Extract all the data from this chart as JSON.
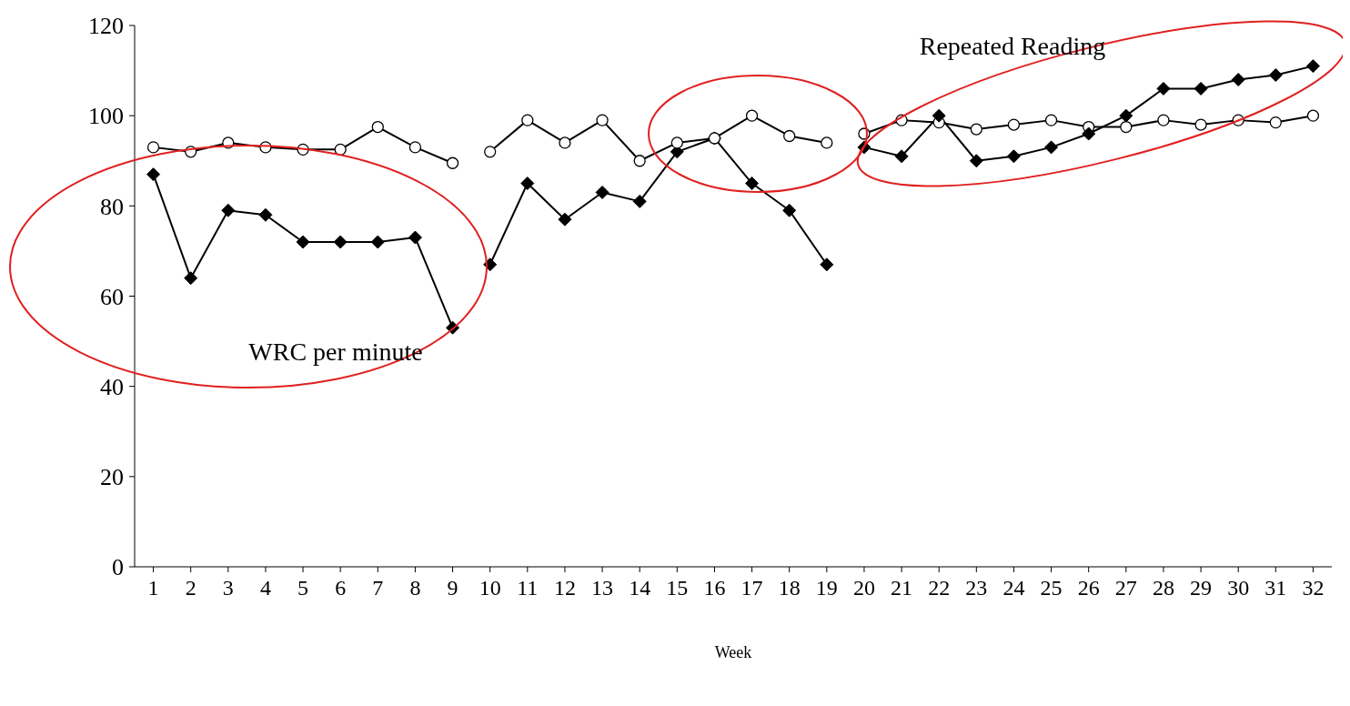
{
  "chart_data": {
    "type": "line",
    "xlabel": "Week",
    "xlim": [
      0.5,
      32.5
    ],
    "xticks": [
      1,
      2,
      3,
      4,
      5,
      6,
      7,
      8,
      9,
      10,
      11,
      12,
      13,
      14,
      15,
      16,
      17,
      18,
      19,
      20,
      21,
      22,
      23,
      24,
      25,
      26,
      27,
      28,
      29,
      30,
      31,
      32
    ],
    "ylim": [
      0,
      120
    ],
    "yticks": [
      0,
      20,
      40,
      60,
      80,
      100,
      120
    ],
    "grid": false,
    "legend": false,
    "line_style": "solid",
    "annotations": [
      "WRC per minute",
      "Repeated Reading"
    ],
    "series": [
      {
        "color": "#000000",
        "marker": "diamond",
        "x": [
          1,
          2,
          3,
          4,
          5,
          6,
          7,
          8,
          9
        ],
        "values": [
          87,
          64,
          79,
          78,
          72,
          72,
          72,
          73,
          53
        ]
      },
      {
        "color": "#000000",
        "marker": "diamond",
        "x": [
          10,
          11,
          12,
          13,
          14,
          15,
          16,
          17,
          18,
          19
        ],
        "values": [
          67,
          85,
          77,
          83,
          81,
          92,
          95,
          85,
          79,
          67
        ]
      },
      {
        "color": "#000000",
        "marker": "circle",
        "x": [
          1,
          2,
          3,
          4,
          5,
          6,
          7,
          8,
          9
        ],
        "values": [
          93,
          92,
          94,
          93,
          92.5,
          92.5,
          97.5,
          93,
          89.5
        ]
      },
      {
        "color": "#000000",
        "marker": "circle",
        "x": [
          10,
          11,
          12,
          13,
          14,
          15,
          16,
          17,
          18,
          19
        ],
        "values": [
          92,
          99,
          94,
          99,
          90,
          94,
          95,
          100,
          95.5,
          94
        ]
      },
      {
        "color": "#000000",
        "marker": "circle",
        "x": [
          20,
          21,
          22,
          23,
          24,
          25,
          26,
          27,
          28,
          29,
          30,
          31,
          32
        ],
        "values": [
          96,
          99,
          98.5,
          97,
          98,
          99,
          97.5,
          97.5,
          99,
          98,
          99,
          98.5,
          100
        ]
      },
      {
        "color": "#000000",
        "marker": "diamond",
        "x": [
          20,
          21,
          22,
          23,
          24,
          25,
          26,
          27,
          28,
          29,
          30,
          31,
          32
        ],
        "values": [
          93,
          91,
          100,
          90,
          91,
          93,
          96,
          100,
          106,
          106,
          108,
          109,
          111
        ]
      }
    ]
  }
}
